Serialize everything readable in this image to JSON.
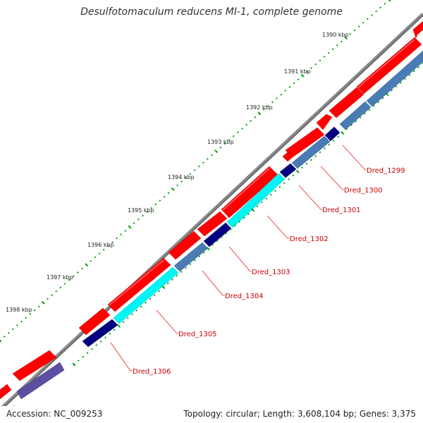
{
  "title": "Desulfotomaculum reducens MI-1, complete genome",
  "ticks": [
    {
      "label": "1390 kbp"
    },
    {
      "label": "1391 kbp"
    },
    {
      "label": "1392 kbp"
    },
    {
      "label": "1393 kbp"
    },
    {
      "label": "1394 kbp"
    },
    {
      "label": "1395 kbp"
    },
    {
      "label": "1396 kbp"
    },
    {
      "label": "1397 kbp"
    },
    {
      "label": "1398 kbp"
    }
  ],
  "gene_labels": [
    {
      "label": "Dred_1299"
    },
    {
      "label": "Dred_1300"
    },
    {
      "label": "Dred_1301"
    },
    {
      "label": "Dred_1302"
    },
    {
      "label": "Dred_1303"
    },
    {
      "label": "Dred_1304"
    },
    {
      "label": "Dred_1305"
    },
    {
      "label": "Dred_1306"
    }
  ],
  "colors": {
    "cds": "#ff0000",
    "gene_steel": "#4a7bb5",
    "gene_cyan": "#00f5f5",
    "gene_navy": "#000080",
    "gene_purple": "#5a4fa0",
    "backbone": "#888888",
    "tick": "#00a000",
    "label": "#cc0000"
  },
  "footer": {
    "accession": "Accession: NC_009253",
    "stats": "Topology: circular; Length: 3,608,104 bp; Genes: 3,375"
  }
}
